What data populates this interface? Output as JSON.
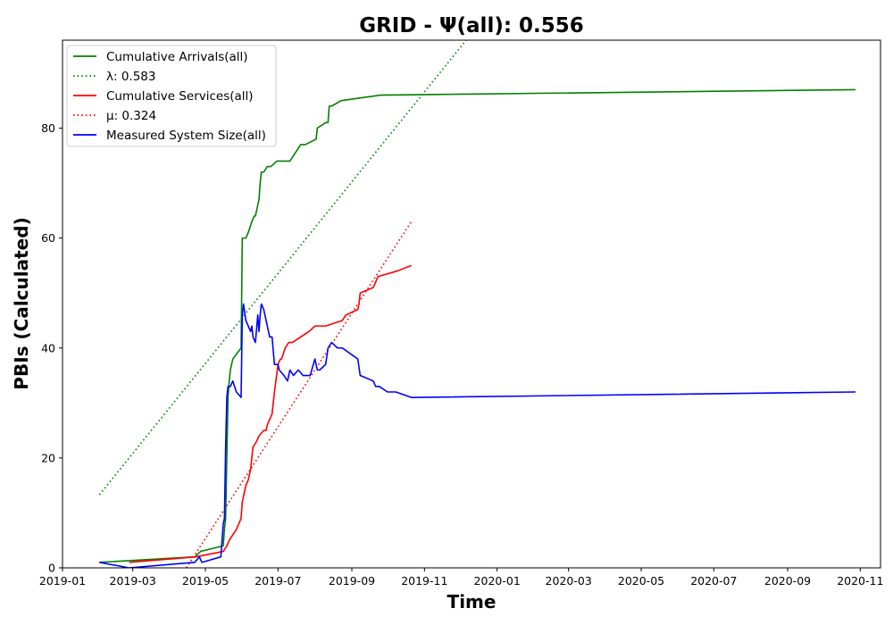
{
  "chart_data": {
    "type": "line",
    "title": "GRID -  Ψ(all): 0.556",
    "xlabel": "Time",
    "ylabel": "PBIs (Calculated)",
    "xlim": [
      "2019-01-01",
      "2020-11-18"
    ],
    "ylim": [
      0,
      96
    ],
    "grid": false,
    "legend_position": "upper-left",
    "x_tick_labels": [
      "2019-01",
      "2019-03",
      "2019-05",
      "2019-07",
      "2019-09",
      "2019-11",
      "2020-01",
      "2020-03",
      "2020-05",
      "2020-07",
      "2020-09",
      "2020-11"
    ],
    "x_tick_dates": [
      "2019-01-01",
      "2019-03-01",
      "2019-05-01",
      "2019-07-01",
      "2019-09-01",
      "2019-11-01",
      "2020-01-01",
      "2020-03-01",
      "2020-05-01",
      "2020-07-01",
      "2020-09-01",
      "2020-11-01"
    ],
    "y_ticks": [
      0,
      20,
      40,
      60,
      80
    ],
    "series": [
      {
        "name": "Cumulative Arrivals(all)",
        "legend_label": "Cumulative Arrivals(all)",
        "color": "#008000",
        "style": "solid",
        "x": [
          "2019-02-01",
          "2019-04-22",
          "2019-04-27",
          "2019-05-16",
          "2019-05-17",
          "2019-05-18",
          "2019-05-19",
          "2019-05-20",
          "2019-05-21",
          "2019-05-22",
          "2019-05-24",
          "2019-05-31",
          "2019-06-01",
          "2019-06-02",
          "2019-06-03",
          "2019-06-04",
          "2019-06-06",
          "2019-06-09",
          "2019-06-11",
          "2019-06-12",
          "2019-06-15",
          "2019-06-16",
          "2019-06-17",
          "2019-06-18",
          "2019-06-19",
          "2019-06-22",
          "2019-06-25",
          "2019-06-30",
          "2019-07-01",
          "2019-07-05",
          "2019-07-11",
          "2019-07-14",
          "2019-07-17",
          "2019-07-20",
          "2019-07-24",
          "2019-08-02",
          "2019-08-03",
          "2019-08-10",
          "2019-08-12",
          "2019-08-13",
          "2019-08-15",
          "2019-08-23",
          "2019-09-25",
          "2020-10-28"
        ],
        "y": [
          1,
          2,
          3,
          4,
          7,
          9,
          20,
          31,
          34,
          36,
          38,
          40,
          60,
          60,
          60,
          60,
          61,
          63,
          64,
          64,
          67,
          70,
          72,
          72,
          72,
          73,
          73,
          74,
          74,
          74,
          74,
          75,
          76,
          77,
          77,
          78,
          80,
          81,
          81,
          84,
          84,
          85,
          86,
          87
        ]
      },
      {
        "name": "λ: 0.583",
        "legend_label": "λ: 0.583",
        "color": "#008000",
        "style": "dotted",
        "x": [
          "2019-02-01",
          "2019-12-06"
        ],
        "y": [
          13.3,
          96
        ]
      },
      {
        "name": "Cumulative Services(all)",
        "legend_label": "Cumulative Services(all)",
        "color": "#ff0000",
        "style": "solid",
        "x": [
          "2019-02-26",
          "2019-04-23",
          "2019-05-16",
          "2019-05-19",
          "2019-05-21",
          "2019-05-24",
          "2019-05-27",
          "2019-05-31",
          "2019-06-01",
          "2019-06-02",
          "2019-06-04",
          "2019-06-06",
          "2019-06-08",
          "2019-06-10",
          "2019-06-13",
          "2019-06-15",
          "2019-06-19",
          "2019-06-21",
          "2019-06-22",
          "2019-06-26",
          "2019-06-28",
          "2019-07-01",
          "2019-07-03",
          "2019-07-04",
          "2019-07-07",
          "2019-07-10",
          "2019-07-13",
          "2019-07-20",
          "2019-07-27",
          "2019-08-01",
          "2019-08-04",
          "2019-08-10",
          "2019-08-24",
          "2019-08-27",
          "2019-09-06",
          "2019-09-07",
          "2019-09-08",
          "2019-09-19",
          "2019-09-21",
          "2019-09-23",
          "2019-10-09",
          "2019-10-21"
        ],
        "y": [
          1,
          2,
          3,
          4,
          5,
          6,
          7,
          9,
          12,
          13,
          15,
          16,
          18,
          22,
          23,
          24,
          25,
          25,
          26,
          28,
          32,
          37,
          38,
          38,
          40,
          41,
          41,
          42,
          43,
          44,
          44,
          44,
          45,
          46,
          47,
          48,
          50,
          51,
          52,
          53,
          54,
          55
        ]
      },
      {
        "name": "μ: 0.324",
        "legend_label": "μ: 0.324",
        "color": "#ff0000",
        "style": "dotted",
        "x": [
          "2019-04-15",
          "2019-10-21"
        ],
        "y": [
          0,
          63
        ]
      },
      {
        "name": "Measured System Size(all)",
        "legend_label": "Measured System Size(all)",
        "color": "#0000ff",
        "style": "solid",
        "x": [
          "2019-02-01",
          "2019-02-26",
          "2019-04-22",
          "2019-04-26",
          "2019-04-28",
          "2019-05-14",
          "2019-05-16",
          "2019-05-17",
          "2019-05-18",
          "2019-05-19",
          "2019-05-20",
          "2019-05-22",
          "2019-05-24",
          "2019-05-27",
          "2019-05-31",
          "2019-06-01",
          "2019-06-02",
          "2019-06-04",
          "2019-06-06",
          "2019-06-08",
          "2019-06-09",
          "2019-06-10",
          "2019-06-12",
          "2019-06-14",
          "2019-06-15",
          "2019-06-16",
          "2019-06-17",
          "2019-06-19",
          "2019-06-21",
          "2019-06-22",
          "2019-06-24",
          "2019-06-26",
          "2019-06-28",
          "2019-07-01",
          "2019-07-02",
          "2019-07-06",
          "2019-07-09",
          "2019-07-11",
          "2019-07-14",
          "2019-07-18",
          "2019-07-22",
          "2019-07-28",
          "2019-08-01",
          "2019-08-03",
          "2019-08-05",
          "2019-08-10",
          "2019-08-12",
          "2019-08-15",
          "2019-08-20",
          "2019-08-24",
          "2019-09-06",
          "2019-09-08",
          "2019-09-19",
          "2019-09-21",
          "2019-09-24",
          "2019-10-01",
          "2019-10-08",
          "2019-10-21",
          "2020-10-28"
        ],
        "y": [
          1,
          0,
          1,
          2,
          1,
          2,
          8,
          9,
          22,
          31,
          33,
          33,
          34,
          32,
          31,
          46,
          48,
          45,
          44,
          43,
          44,
          42,
          41,
          46,
          43,
          46,
          48,
          47,
          45,
          44,
          42,
          42,
          37,
          37,
          36,
          35,
          34,
          36,
          35,
          36,
          35,
          35,
          38,
          36,
          36,
          37,
          40,
          41,
          40,
          40,
          38,
          35,
          34,
          33,
          33,
          32,
          32,
          31,
          32
        ]
      }
    ]
  }
}
